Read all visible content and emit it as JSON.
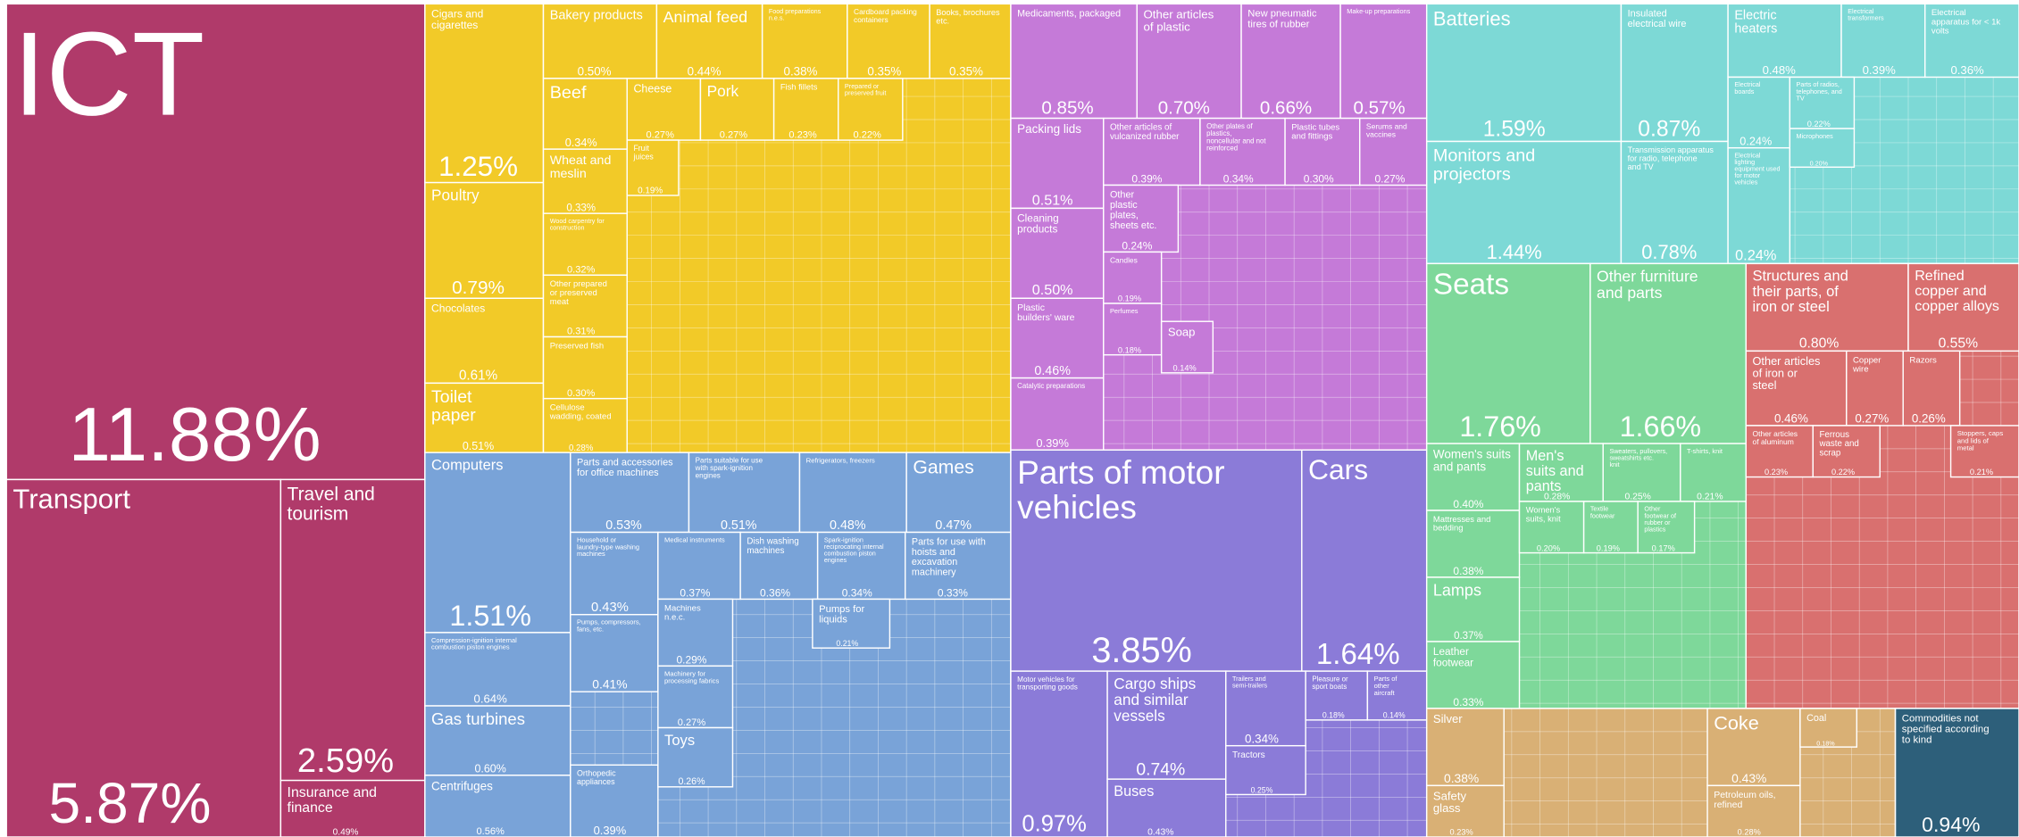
{
  "chart_data": {
    "type": "treemap",
    "groups": [
      {
        "color": "#b03a6a",
        "categories": [
          "ICT",
          "Transport",
          "Travel and tourism",
          "Insurance and finance"
        ],
        "values": [
          11.88,
          5.87,
          2.59,
          0.49
        ],
        "value_labels": [
          "11.88%",
          "5.87%",
          "2.59%",
          "0.49%"
        ]
      },
      {
        "color": "#f2ca28",
        "categories": [
          "Cigars and cigarettes",
          "Poultry",
          "Chocolates",
          "Toilet paper",
          "Bakery products",
          "Animal feed",
          "Food preparations n.e.s.",
          "Cardboard packing containers",
          "Books, brochures etc.",
          "Beef",
          "Wheat and meslin",
          "Wood carpentry for construction",
          "Other prepared or preserved meat",
          "Preserved fish",
          "Cellulose wadding, coated",
          "Cheese",
          "Pork",
          "Fish fillets",
          "Prepared or preserved fruit",
          "Fruit juices"
        ],
        "values": [
          1.25,
          0.79,
          0.61,
          0.51,
          0.5,
          0.44,
          0.38,
          0.35,
          0.35,
          0.34,
          0.33,
          0.32,
          0.31,
          0.3,
          0.28,
          0.27,
          0.27,
          0.23,
          0.22,
          0.19
        ],
        "value_labels": [
          "1.25%",
          "0.79%",
          "0.61%",
          "0.51%",
          "0.50%",
          "0.44%",
          "0.38%",
          "0.35%",
          "0.35%",
          "0.34%",
          "0.33%",
          "0.32%",
          "0.31%",
          "0.30%",
          "0.28%",
          "0.27%",
          "0.27%",
          "0.23%",
          "0.22%",
          "0.19%"
        ]
      },
      {
        "color": "#79a3d8",
        "categories": [
          "Computers",
          "Compression-ignition internal combustion piston engines",
          "Gas turbines",
          "Centrifuges",
          "Parts and accessories for office machines",
          "Parts suitable for use with spark-ignition engines",
          "Refrigerators, freezers",
          "Games",
          "Household or laundry-type washing machines",
          "Pumps, compressors, fans, etc.",
          "Orthopedic appliances",
          "Medical instruments",
          "Dish washing machines",
          "Spark-ignition reciprocating internal combustion piston engines",
          "Parts for use with hoists and excavation machinery",
          "Machines n.e.c.",
          "Machinery for processing fabrics",
          "Toys",
          "Pumps for liquids"
        ],
        "values": [
          1.51,
          0.64,
          0.6,
          0.56,
          0.53,
          0.51,
          0.48,
          0.47,
          0.43,
          0.41,
          0.39,
          0.37,
          0.36,
          0.34,
          0.33,
          0.29,
          0.27,
          0.26,
          0.21
        ],
        "value_labels": [
          "1.51%",
          "0.64%",
          "0.60%",
          "0.56%",
          "0.53%",
          "0.51%",
          "0.48%",
          "0.47%",
          "0.43%",
          "0.41%",
          "0.39%",
          "0.37%",
          "0.36%",
          "0.34%",
          "0.33%",
          "0.29%",
          "0.27%",
          "0.26%",
          "0.21%"
        ]
      },
      {
        "color": "#c57ad8",
        "categories": [
          "Medicaments, packaged",
          "Other articles of plastic",
          "New pneumatic tires of rubber",
          "Make-up preparations",
          "Packing lids",
          "Cleaning products",
          "Plastic builders' ware",
          "Catalytic preparations",
          "Other articles of vulcanized rubber",
          "Other plates of plastics, noncellular and not reinforced",
          "Plastic tubes and fittings",
          "Serums and vaccines",
          "Other plastic plates, sheets etc.",
          "Candles",
          "Perfumes",
          "Soap"
        ],
        "values": [
          0.85,
          0.7,
          0.66,
          0.57,
          0.51,
          0.5,
          0.46,
          0.39,
          0.39,
          0.34,
          0.3,
          0.27,
          0.24,
          0.19,
          0.18,
          0.14
        ],
        "value_labels": [
          "0.85%",
          "0.70%",
          "0.66%",
          "0.57%",
          "0.51%",
          "0.50%",
          "0.46%",
          "0.39%",
          "0.39%",
          "0.34%",
          "0.30%",
          "0.27%",
          "0.24%",
          "0.19%",
          "0.18%",
          "0.14%"
        ]
      },
      {
        "color": "#8b7bd8",
        "categories": [
          "Parts of motor vehicles",
          "Cars",
          "Motor vehicles for transporting goods",
          "Cargo ships and similar vessels",
          "Buses",
          "Trailers and semi-trailers",
          "Tractors",
          "Pleasure or sport boats",
          "Parts of other aircraft"
        ],
        "values": [
          3.85,
          1.64,
          0.97,
          0.74,
          0.43,
          0.34,
          0.25,
          0.18,
          0.14
        ],
        "value_labels": [
          "3.85%",
          "1.64%",
          "0.97%",
          "0.74%",
          "0.43%",
          "0.34%",
          "0.25%",
          "0.18%",
          "0.14%"
        ]
      },
      {
        "color": "#7dd9d6",
        "categories": [
          "Batteries",
          "Monitors and projectors",
          "Insulated electrical wire",
          "Transmission apparatus for radio, telephone and TV",
          "Electric heaters",
          "Electrical transformers",
          "Electrical apparatus for < 1k volts",
          "Electrical boards",
          "Electrical lighting equipment used for motor vehicles",
          "Parts of radios, telephones, and TV",
          "Microphones"
        ],
        "values": [
          1.59,
          1.44,
          0.87,
          0.78,
          0.48,
          0.39,
          0.36,
          0.24,
          0.24,
          0.22,
          0.2
        ],
        "value_labels": [
          "1.59%",
          "1.44%",
          "0.87%",
          "0.78%",
          "0.48%",
          "0.39%",
          "0.36%",
          "0.24%",
          "0.24%",
          "0.22%",
          "0.20%"
        ]
      },
      {
        "color": "#7ed89a",
        "categories": [
          "Seats",
          "Other furniture and parts",
          "Women's suits and pants",
          "Mattresses and bedding",
          "Lamps",
          "Leather footwear",
          "Men's suits and pants",
          "Sweaters, pullovers, sweatshirts etc. knit",
          "T-shirts, knit",
          "Women's suits, knit",
          "Textile footwear",
          "Other footwear of rubber or plastics"
        ],
        "values": [
          1.76,
          1.66,
          0.4,
          0.38,
          0.37,
          0.33,
          0.28,
          0.25,
          0.21,
          0.2,
          0.19,
          0.17
        ],
        "value_labels": [
          "1.76%",
          "1.66%",
          "0.40%",
          "0.38%",
          "0.37%",
          "0.33%",
          "0.28%",
          "0.25%",
          "0.21%",
          "0.20%",
          "0.19%",
          "0.17%"
        ]
      },
      {
        "color": "#d9706f",
        "categories": [
          "Structures and their parts, of iron or steel",
          "Refined copper and copper alloys",
          "Other articles of iron or steel",
          "Copper wire",
          "Razors",
          "Other articles of aluminum",
          "Ferrous waste and scrap",
          "Stoppers, caps and lids of metal"
        ],
        "values": [
          0.8,
          0.55,
          0.46,
          0.27,
          0.26,
          0.23,
          0.22,
          0.21
        ],
        "value_labels": [
          "0.80%",
          "0.55%",
          "0.46%",
          "0.27%",
          "0.26%",
          "0.23%",
          "0.22%",
          "0.21%"
        ]
      },
      {
        "color": "#d9b075",
        "categories": [
          "Silver",
          "Safety glass",
          "Coke",
          "Petroleum oils, refined",
          "Coal"
        ],
        "values": [
          0.38,
          0.23,
          0.43,
          0.28,
          0.18
        ],
        "value_labels": [
          "0.38%",
          "0.23%",
          "0.43%",
          "0.28%",
          "0.18%"
        ]
      },
      {
        "color": "#2d5f7a",
        "categories": [
          "Commodities not specified according to kind"
        ],
        "values": [
          0.94
        ],
        "value_labels": [
          "0.94%"
        ]
      }
    ]
  }
}
